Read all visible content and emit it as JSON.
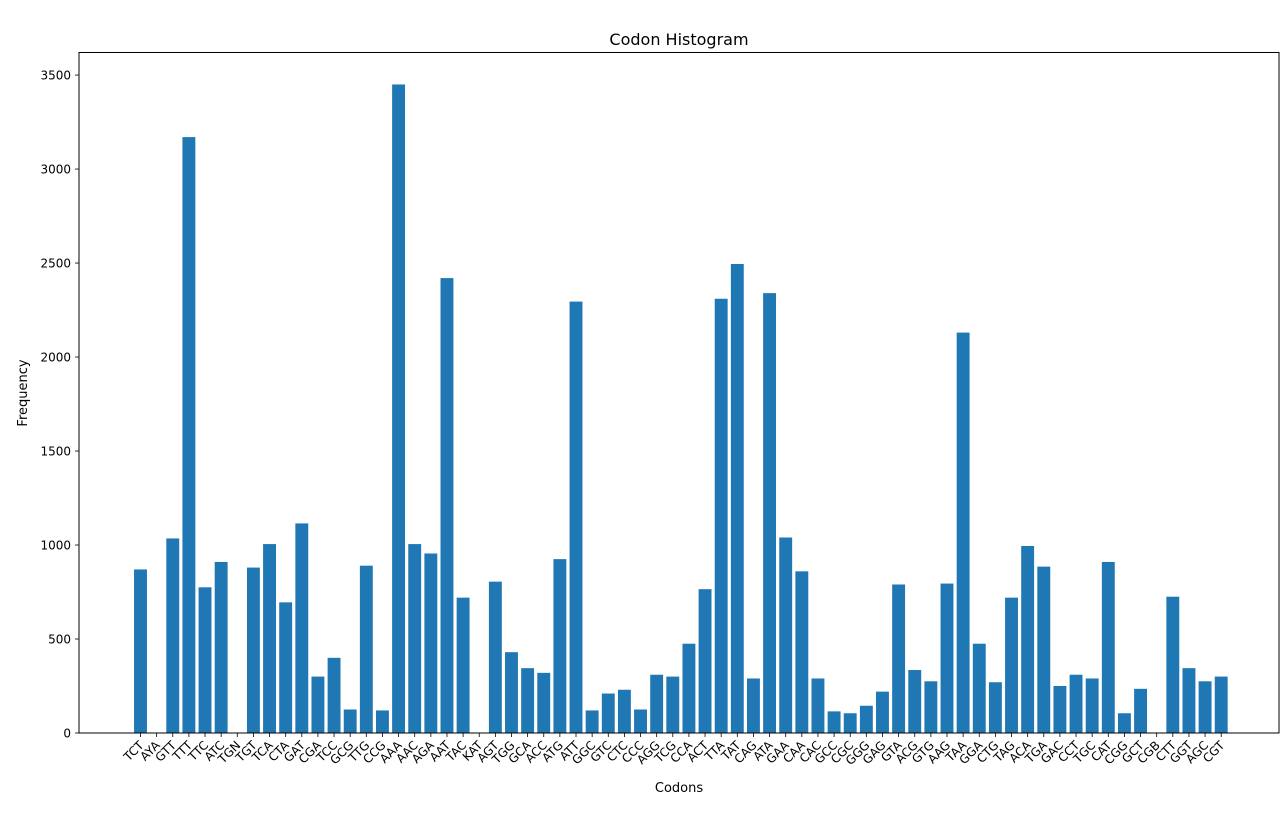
{
  "chart_data": {
    "type": "bar",
    "title": "Codon Histogram",
    "xlabel": "Codons",
    "ylabel": "Frequency",
    "ylim": [
      0,
      3620
    ],
    "yticks": [
      0,
      500,
      1000,
      1500,
      2000,
      2500,
      3000,
      3500
    ],
    "grid": false,
    "legend": "none",
    "bar_color": "#1f77b4",
    "categories": [
      "TCT",
      "AYA",
      "GTT",
      "TTT",
      "TTC",
      "ATC",
      "TGN",
      "TGT",
      "TCA",
      "CTA",
      "GAT",
      "CGA",
      "TCC",
      "GCG",
      "TTG",
      "CCG",
      "AAA",
      "AAC",
      "AGA",
      "AAT",
      "TAC",
      "KAT",
      "AGT",
      "TGG",
      "GCA",
      "ACC",
      "ATG",
      "ATT",
      "GGC",
      "GTC",
      "CTC",
      "CCC",
      "AGG",
      "TCG",
      "CCA",
      "ACT",
      "TTA",
      "TAT",
      "CAG",
      "ATA",
      "GAA",
      "CAA",
      "CAC",
      "GCC",
      "CGC",
      "GGG",
      "GAG",
      "GTA",
      "ACG",
      "GTG",
      "AAG",
      "TAA",
      "GGA",
      "CTG",
      "TAG",
      "ACA",
      "TGA",
      "GAC",
      "CCT",
      "TGC",
      "CAT",
      "CGG",
      "GCT",
      "CGB",
      "CTT",
      "GGT",
      "AGC",
      "CGT"
    ],
    "values": [
      870,
      2,
      1035,
      3170,
      775,
      910,
      2,
      880,
      1005,
      695,
      1115,
      300,
      400,
      125,
      890,
      120,
      3450,
      1005,
      955,
      2420,
      720,
      2,
      805,
      430,
      345,
      320,
      925,
      2295,
      120,
      210,
      230,
      125,
      310,
      300,
      475,
      765,
      2310,
      2495,
      290,
      2340,
      1040,
      860,
      290,
      115,
      105,
      145,
      220,
      790,
      335,
      275,
      795,
      2130,
      475,
      270,
      720,
      995,
      885,
      250,
      310,
      290,
      910,
      105,
      235,
      2,
      725,
      345,
      275,
      300
    ]
  }
}
